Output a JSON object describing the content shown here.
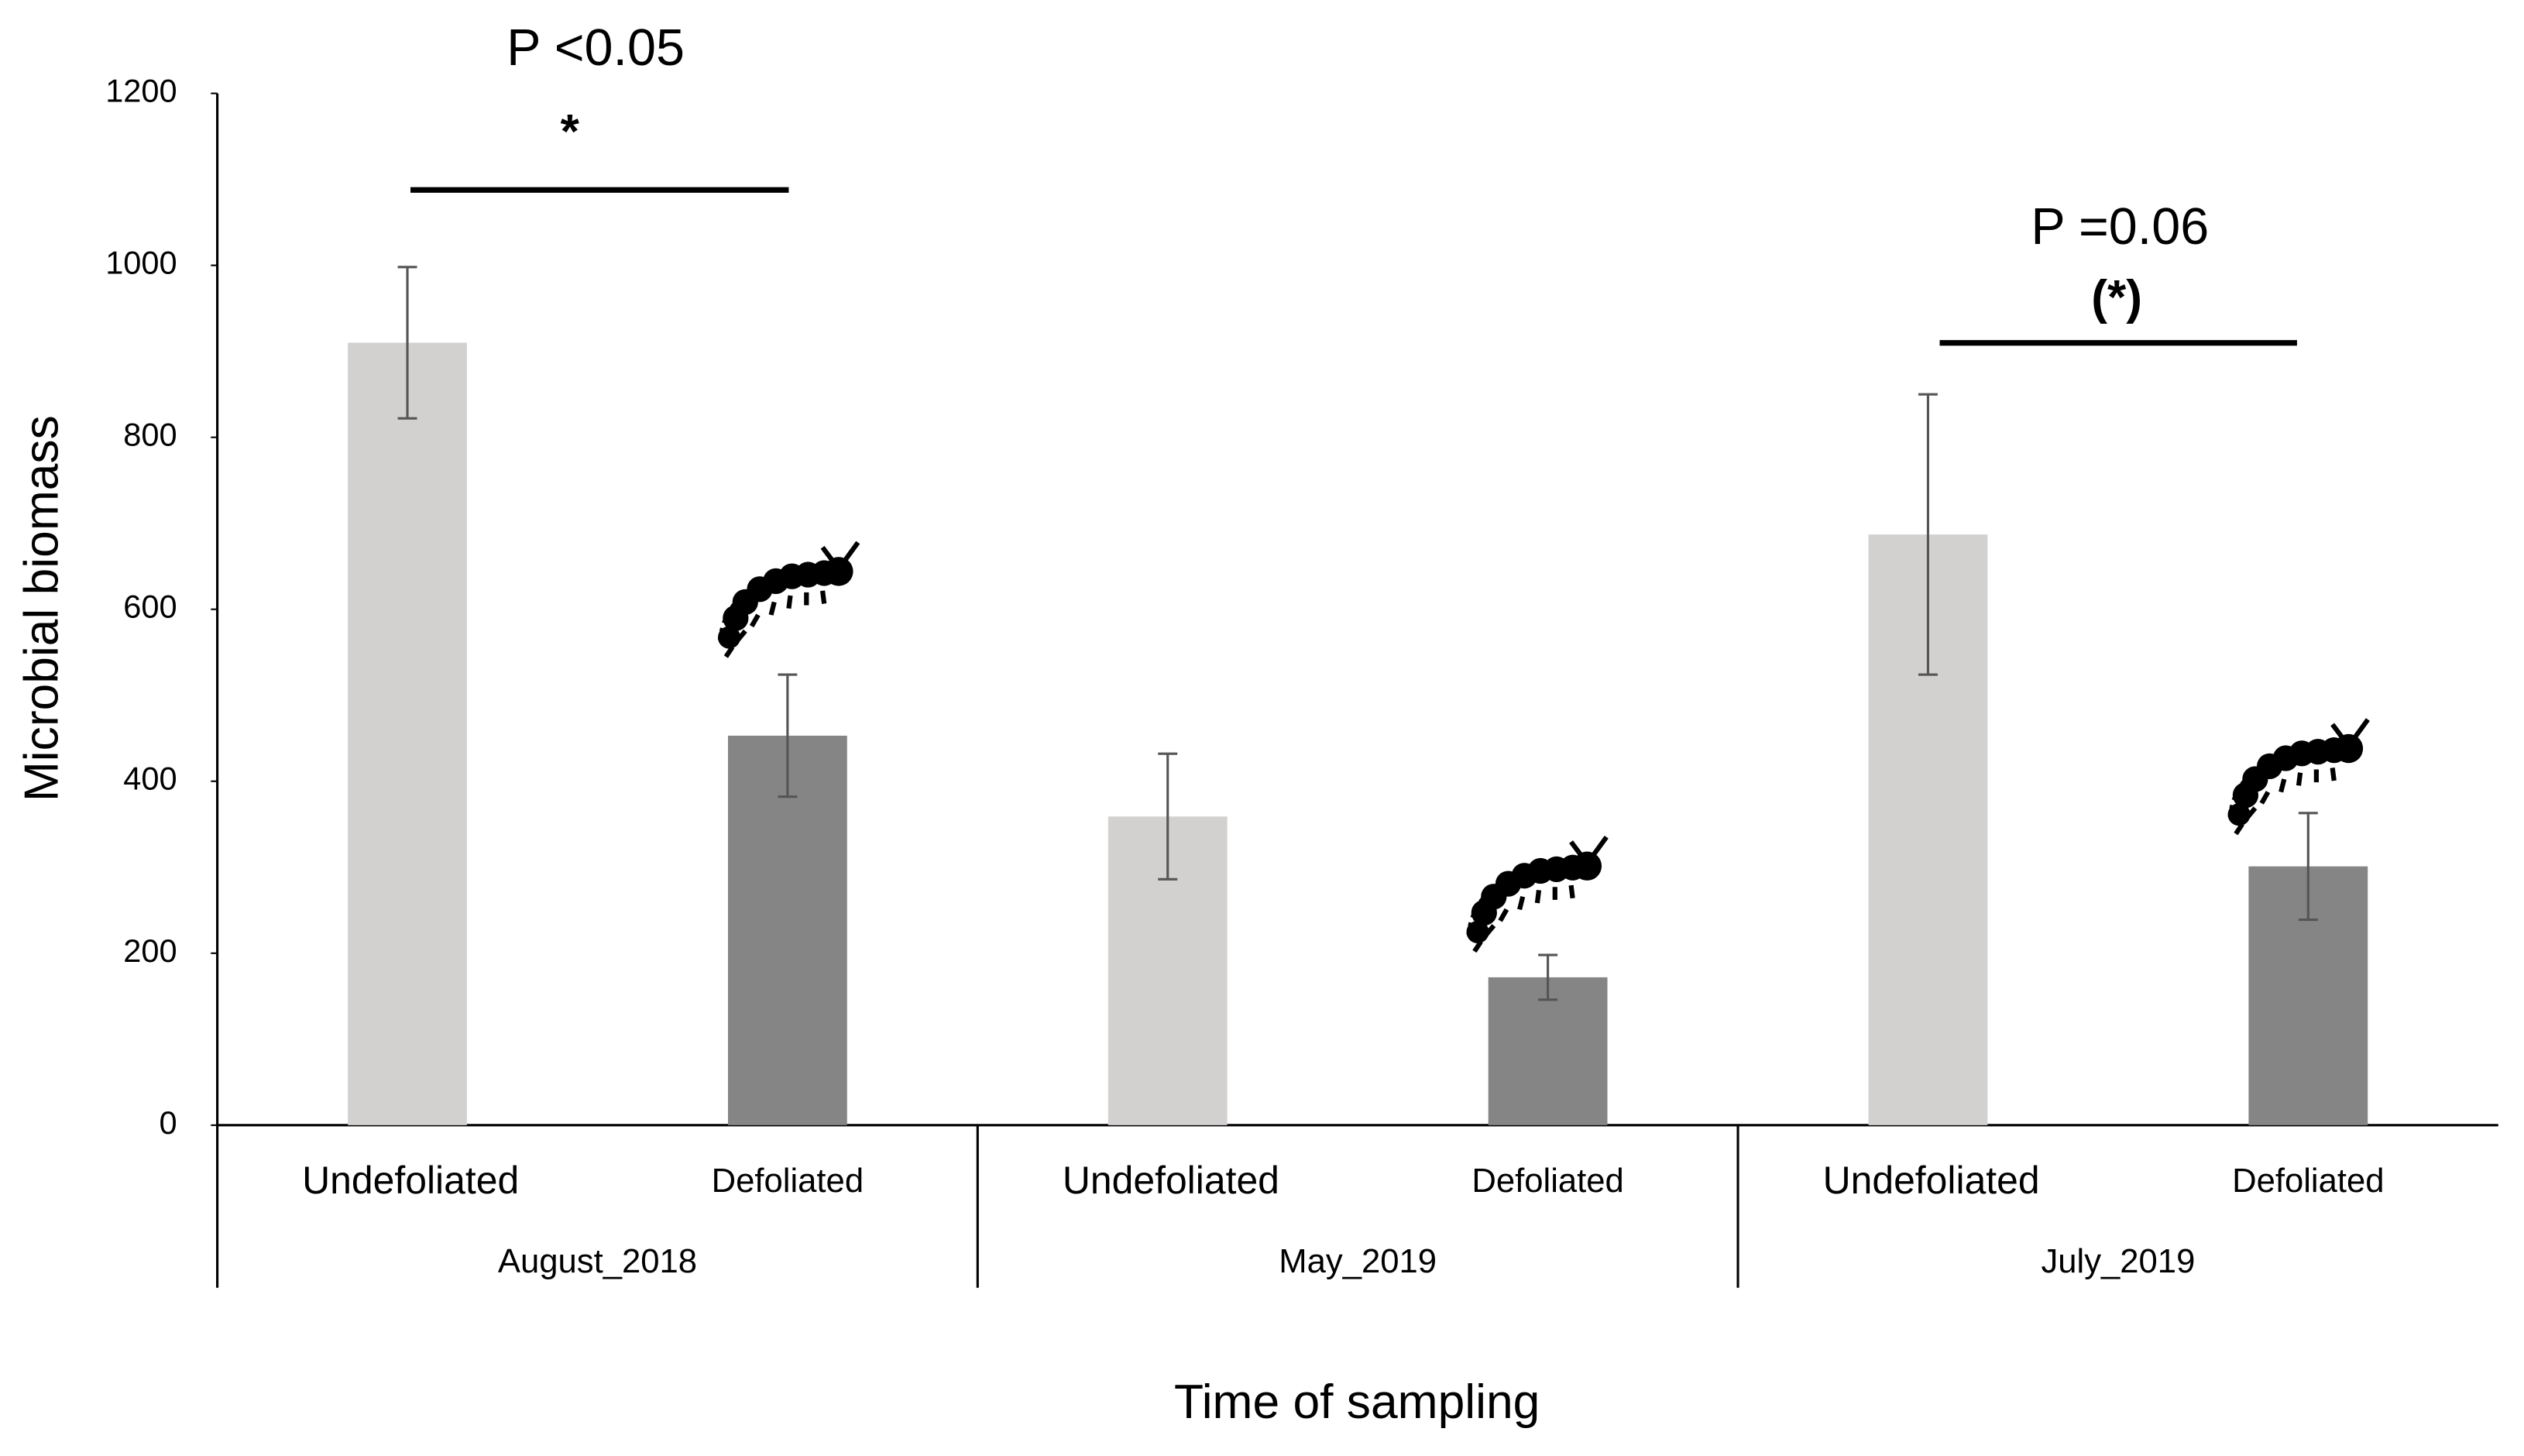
{
  "chart_data": {
    "type": "bar",
    "ylabel": "Microbial biomass",
    "xlabel": "Time of sampling",
    "categories": [
      "Undefoliated",
      "Defoliated",
      "Undefoliated",
      "Defoliated",
      "Undefoliated",
      "Defoliated"
    ],
    "groups": [
      "August_2018",
      "May_2019",
      "July_2019"
    ],
    "values": [
      910,
      453,
      359,
      172,
      687,
      301
    ],
    "errors": [
      88,
      71,
      73,
      26,
      163,
      62
    ],
    "colors": [
      "#d3d0d0",
      "#858585",
      "#d3d0d0",
      "#858585",
      "#d3d0d0",
      "#858585"
    ],
    "ylim": [
      0,
      1200
    ],
    "yticks": [
      0,
      200,
      400,
      600,
      800,
      1000,
      1200
    ],
    "grid": false,
    "annotations": [
      "P <0.05",
      "*",
      "P =0.06",
      "(*)"
    ]
  }
}
